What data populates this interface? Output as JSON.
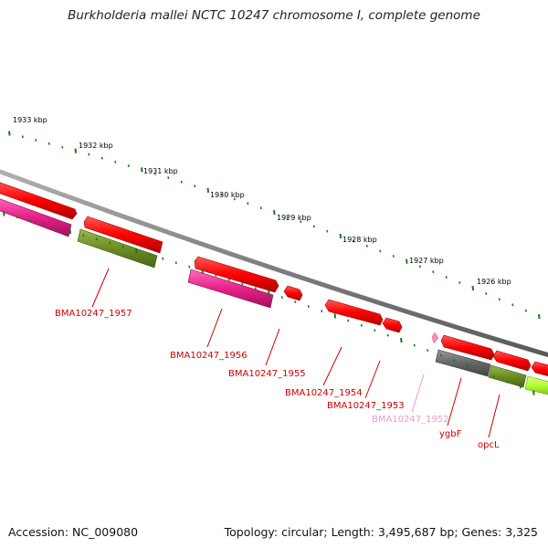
{
  "title": "Burkholderia mallei NCTC 10247 chromosome I, complete genome",
  "footer": {
    "accession": "Accession: NC_009080",
    "topology": "Topology: circular; Length: 3,495,687 bp; Genes: 3,325"
  },
  "colors": {
    "background": "#ffffff",
    "backbone": "#808080",
    "tick": "#1a7a1a",
    "kbp_label": "#000000",
    "gene_label": "#cc0000",
    "gene_label_faded": "#f09ac8",
    "red_gene": "#ff0000",
    "magenta_gene": "#e8208a",
    "olive_gene": "#6b8e23",
    "gray_gene": "#666666",
    "lime_gene": "#adff2f",
    "pink_gene": "#ff8ab4"
  },
  "scale_labels": [
    "1933 kbp",
    "1932 kbp",
    "1931 kbp",
    "1930 kbp",
    "1929 kbp",
    "1928 kbp",
    "1927 kbp",
    "1926 kbp"
  ],
  "gene_labels": [
    "BMA10247_1957",
    "BMA10247_1956",
    "BMA10247_1955",
    "BMA10247_1954",
    "BMA10247_1953",
    "BMA10247_1952",
    "ygbF",
    "opcL"
  ]
}
